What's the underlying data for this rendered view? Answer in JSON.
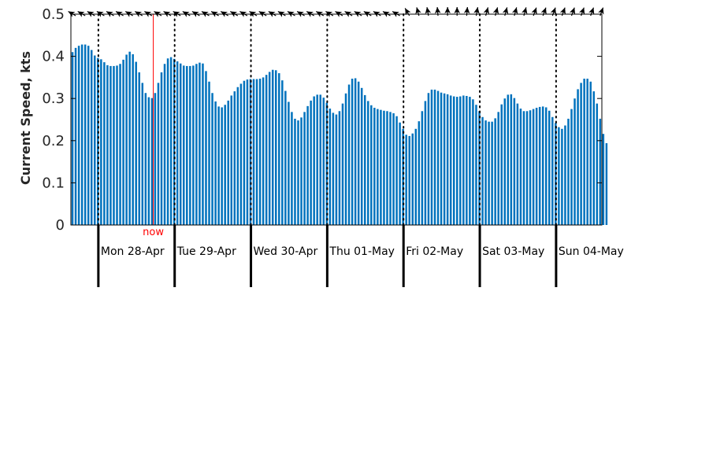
{
  "chart_data": {
    "type": "bar",
    "ylabel": "Current Speed, kts",
    "ylim": [
      0,
      0.5
    ],
    "yticks": [
      0,
      0.1,
      0.2,
      0.3,
      0.4,
      0.5
    ],
    "ytick_labels": [
      "0",
      "0.1",
      "0.2",
      "0.3",
      "0.4",
      "0.5"
    ],
    "grid": false,
    "day_labels": [
      "Mon 28-Apr",
      "Tue 29-Apr",
      "Wed 30-Apr",
      "Thu 01-May",
      "Fri 02-May",
      "Sat 03-May",
      "Sun 04-May"
    ],
    "now_label": "now",
    "now_position_days": 0.72,
    "visible_range_days": [
      -0.36,
      6.6
    ],
    "speed_series": {
      "name": "",
      "start_day": -0.36,
      "step_hours": 1,
      "values": [
        0.41,
        0.42,
        0.425,
        0.428,
        0.428,
        0.425,
        0.415,
        0.402,
        0.396,
        0.393,
        0.386,
        0.379,
        0.377,
        0.377,
        0.378,
        0.382,
        0.392,
        0.404,
        0.411,
        0.405,
        0.387,
        0.362,
        0.337,
        0.313,
        0.303,
        0.301,
        0.313,
        0.337,
        0.362,
        0.382,
        0.395,
        0.398,
        0.394,
        0.388,
        0.383,
        0.378,
        0.377,
        0.377,
        0.378,
        0.382,
        0.385,
        0.383,
        0.365,
        0.34,
        0.313,
        0.293,
        0.281,
        0.279,
        0.285,
        0.295,
        0.307,
        0.317,
        0.327,
        0.335,
        0.342,
        0.345,
        0.346,
        0.346,
        0.346,
        0.347,
        0.35,
        0.356,
        0.363,
        0.368,
        0.367,
        0.36,
        0.343,
        0.318,
        0.292,
        0.268,
        0.252,
        0.248,
        0.255,
        0.268,
        0.282,
        0.295,
        0.305,
        0.309,
        0.309,
        0.302,
        0.29,
        0.276,
        0.266,
        0.262,
        0.27,
        0.288,
        0.312,
        0.333,
        0.347,
        0.348,
        0.34,
        0.325,
        0.308,
        0.294,
        0.284,
        0.278,
        0.275,
        0.273,
        0.271,
        0.27,
        0.268,
        0.265,
        0.258,
        0.243,
        0.228,
        0.214,
        0.211,
        0.217,
        0.228,
        0.246,
        0.27,
        0.294,
        0.313,
        0.321,
        0.321,
        0.318,
        0.314,
        0.312,
        0.31,
        0.307,
        0.305,
        0.304,
        0.305,
        0.307,
        0.306,
        0.304,
        0.298,
        0.285,
        0.27,
        0.256,
        0.248,
        0.245,
        0.245,
        0.253,
        0.268,
        0.286,
        0.3,
        0.309,
        0.31,
        0.301,
        0.288,
        0.276,
        0.27,
        0.27,
        0.272,
        0.275,
        0.278,
        0.28,
        0.281,
        0.279,
        0.271,
        0.256,
        0.242,
        0.232,
        0.228,
        0.236,
        0.252,
        0.275,
        0.3,
        0.322,
        0.337,
        0.347,
        0.347,
        0.34,
        0.317,
        0.288,
        0.252,
        0.216,
        0.194
      ]
    },
    "direction_arrows": {
      "start_day": -0.36,
      "step_hours": 3,
      "directions_deg": [
        300,
        300,
        300,
        300,
        300,
        300,
        300,
        300,
        300,
        300,
        300,
        300,
        300,
        300,
        300,
        300,
        300,
        300,
        300,
        300,
        300,
        300,
        300,
        300,
        300,
        300,
        300,
        300,
        300,
        300,
        300,
        300,
        300,
        300,
        300,
        330,
        345,
        350,
        355,
        0,
        0,
        5,
        10,
        15,
        15,
        15,
        15,
        15,
        20,
        20,
        20,
        20,
        20,
        20,
        20,
        20
      ]
    },
    "colors": {
      "bar": "#0072BD",
      "now_line": "#FF0000",
      "now_text": "#FF0000",
      "axes": "#000000"
    }
  }
}
